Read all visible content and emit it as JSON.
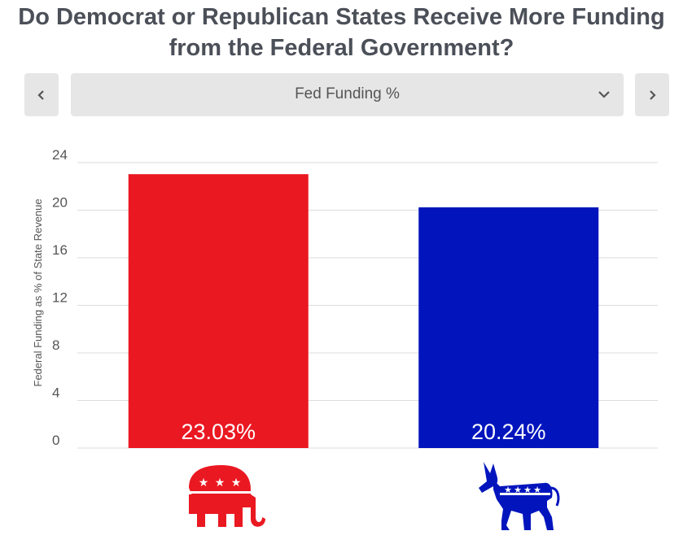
{
  "title_line1": "Do Democrat or Republican States Receive More Funding",
  "title_line2": "from the Federal Government?",
  "selector": {
    "selected": "Fed Funding %",
    "prev_icon": "chevron-left-icon",
    "next_icon": "chevron-right-icon",
    "dropdown_icon": "chevron-down-icon"
  },
  "chart_data": {
    "type": "bar",
    "categories": [
      "Republican",
      "Democrat"
    ],
    "values": [
      23.03,
      20.24
    ],
    "value_labels": [
      "23.03%",
      "20.24%"
    ],
    "bar_colors": [
      "#ea1821",
      "#0215bd"
    ],
    "category_icons": [
      "republican-elephant-icon",
      "democratic-donkey-icon"
    ],
    "ylabel": "Federal Funding as % of State Revenue",
    "ylim": [
      0,
      24
    ],
    "yticks": [
      0,
      4,
      8,
      12,
      16,
      20,
      24
    ],
    "grid": true,
    "legend": "none"
  }
}
